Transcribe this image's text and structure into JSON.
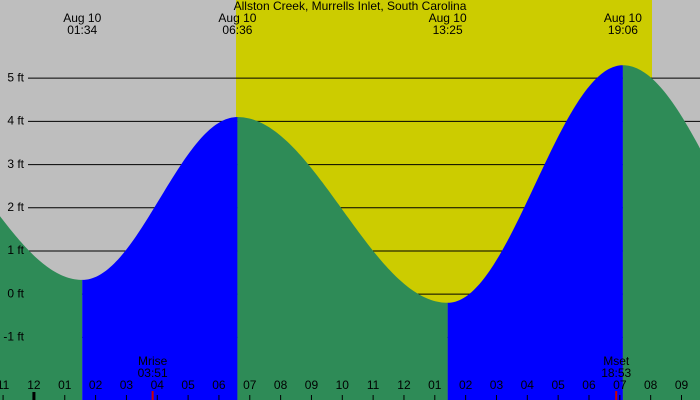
{
  "chart_data": {
    "type": "tide",
    "title": "Allston Creek, Murrells Inlet, South Carolina",
    "extremes": [
      {
        "date": "Aug 10",
        "time": "01:34",
        "height": 0.33
      },
      {
        "date": "Aug 10",
        "time": "06:36",
        "height": 4.1
      },
      {
        "date": "Aug 10",
        "time": "13:25",
        "height": -0.2
      },
      {
        "date": "Aug 10",
        "time": "19:06",
        "height": 5.3
      }
    ],
    "moon": [
      {
        "event": "Mrise",
        "time": "03:51"
      },
      {
        "event": "Mset",
        "time": "18:53"
      }
    ],
    "xlim": [
      -1.1,
      21.6
    ],
    "xticks": [
      {
        "value": -1,
        "label": "11"
      },
      {
        "value": 0,
        "label": "12"
      },
      {
        "value": 1,
        "label": "01"
      },
      {
        "value": 2,
        "label": "02"
      },
      {
        "value": 3,
        "label": "03"
      },
      {
        "value": 4,
        "label": "04"
      },
      {
        "value": 5,
        "label": "05"
      },
      {
        "value": 6,
        "label": "06"
      },
      {
        "value": 7,
        "label": "07"
      },
      {
        "value": 8,
        "label": "08"
      },
      {
        "value": 9,
        "label": "09"
      },
      10,
      11,
      12,
      {
        "value": 13,
        "label": "01"
      },
      {
        "value": 14,
        "label": "02"
      },
      {
        "value": 15,
        "label": "03"
      },
      {
        "value": 16,
        "label": "04"
      },
      {
        "value": 17,
        "label": "05"
      },
      {
        "value": 18,
        "label": "06"
      },
      {
        "value": 19,
        "label": "07"
      },
      {
        "value": 20,
        "label": "08"
      },
      {
        "value": 21,
        "label": "09"
      }
    ],
    "ylim": [
      -2.45,
      6.81
    ],
    "yticks": [
      {
        "value": -1,
        "label": "-1 ft"
      },
      {
        "value": 0,
        "label": "0 ft"
      },
      {
        "value": 1,
        "label": "1 ft"
      },
      {
        "value": 2,
        "label": "2 ft"
      },
      {
        "value": 3,
        "label": "3 ft"
      },
      {
        "value": 4,
        "label": "4 ft"
      },
      {
        "value": 5,
        "label": "5 ft"
      }
    ],
    "colors": {
      "rising": "#0000ff",
      "falling": "#2e8b57",
      "day": "#cccc00",
      "night": "#bebebe",
      "moon": "#cc0000"
    }
  }
}
